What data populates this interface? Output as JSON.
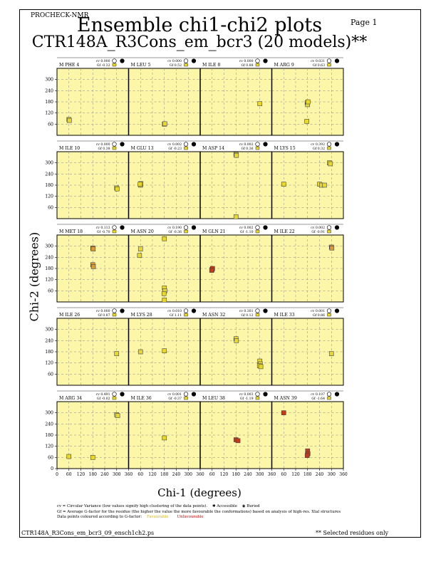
{
  "header": {
    "program": "PROCHECK-NMR",
    "page_label": "Page 1",
    "title": "Ensemble chi1-chi2 plots",
    "subtitle": "CTR148A_R3Cons_em_bcr3 (20 models)**"
  },
  "footer": {
    "filename": "CTR148A_R3Cons_em_bcr3_09_ensch1ch2.ps",
    "note": "** Selected residues only"
  },
  "legend": {
    "cv_text": "cv = Circular Variance (low values signify high clustering of the data points).",
    "accessible": "Accessible",
    "buried": "Buried",
    "gf_text": "Gf = Average G-factor for the residue (the higher the value the more favourable the conformations) based on analysis of high-res. Xtal structures",
    "colour_text": "Data points coloured according to G-factor:",
    "favourable": "Favourable",
    "unfavourable": "Unfavourable"
  },
  "colors": {
    "panel_bg": "#fbf6a8",
    "favourable": "#e8d82e",
    "intermediate": "#d89a38",
    "unfavourable": "#c23a1a"
  },
  "chart_data": {
    "type": "scatter",
    "xlabel": "Chi-1 (degrees)",
    "ylabel": "Chi-2 (degrees)",
    "xlim": [
      0,
      360
    ],
    "ylim": [
      0,
      360
    ],
    "x_ticks": [
      0,
      60,
      120,
      180,
      240,
      300,
      360
    ],
    "y_ticks": [
      60,
      120,
      180,
      240,
      300
    ],
    "y_ticks_bottom": [
      0,
      60,
      120,
      180,
      240,
      300
    ],
    "panels": [
      {
        "residue": "M PHE 4",
        "cv": "cv 0.000",
        "gf": "Gf -0.32",
        "access": "buried-acc",
        "points": [
          [
            60,
            85
          ],
          [
            62,
            80
          ]
        ]
      },
      {
        "residue": "M LEU 5",
        "cv": "cv 0.000",
        "gf": "Gf 0.52",
        "access": "buried",
        "points": [
          [
            180,
            60
          ],
          [
            182,
            62
          ]
        ]
      },
      {
        "residue": "M ILE 8",
        "cv": "cv 0.000",
        "gf": "Gf 0.88",
        "access": "accessible",
        "points": [
          [
            300,
            170
          ]
        ]
      },
      {
        "residue": "M ARG 9",
        "cv": "cv 0.031",
        "gf": "Gf 0.63",
        "access": "buried",
        "points": [
          [
            178,
            175
          ],
          [
            180,
            165
          ],
          [
            182,
            180
          ],
          [
            176,
            75
          ]
        ]
      },
      {
        "residue": "M ILE 10",
        "cv": "cv 0.000",
        "gf": "Gf 0.38",
        "access": "buried",
        "points": [
          [
            300,
            165
          ],
          [
            302,
            160
          ]
        ]
      },
      {
        "residue": "M GLU 13",
        "cv": "cv 0.002",
        "gf": "Gf -0.23",
        "access": "buried",
        "points": [
          [
            60,
            180
          ],
          [
            62,
            188
          ],
          [
            58,
            185
          ]
        ]
      },
      {
        "residue": "M ASP 14",
        "cv": "cv 0.002",
        "gf": "Gf 0.36",
        "access": "acc-buried",
        "points": [
          [
            180,
            345
          ],
          [
            182,
            340
          ],
          [
            180,
            10
          ]
        ]
      },
      {
        "residue": "M LYS 15",
        "cv": "cv 0.392",
        "gf": "Gf 0.32",
        "access": "half",
        "points": [
          [
            60,
            185
          ],
          [
            240,
            185
          ],
          [
            250,
            180
          ],
          [
            265,
            180
          ],
          [
            290,
            300
          ],
          [
            295,
            295
          ]
        ]
      },
      {
        "residue": "M MET 18",
        "cv": "cv 0.113",
        "gf": "Gf -0.70",
        "access": "buried",
        "points": [
          [
            180,
            290
          ],
          [
            182,
            285
          ],
          [
            180,
            200
          ],
          [
            183,
            190
          ]
        ]
      },
      {
        "residue": "M ASN 20",
        "cv": "cv 0.190",
        "gf": "Gf -0.36",
        "access": "buried-acc",
        "points": [
          [
            60,
            285
          ],
          [
            55,
            250
          ],
          [
            180,
            340
          ],
          [
            180,
            75
          ],
          [
            182,
            60
          ],
          [
            178,
            45
          ],
          [
            180,
            10
          ]
        ]
      },
      {
        "residue": "M GLN 21",
        "cv": "cv 0.002",
        "gf": "Gf -1.10",
        "access": "buried",
        "points": [
          [
            60,
            175
          ],
          [
            62,
            180
          ],
          [
            58,
            170
          ]
        ]
      },
      {
        "residue": "M ILE 22",
        "cv": "cv 0.002",
        "gf": "Gf -0.91",
        "access": "buried",
        "points": [
          [
            300,
            295
          ],
          [
            302,
            290
          ]
        ]
      },
      {
        "residue": "M ILE 26",
        "cv": "cv 0.000",
        "gf": "Gf 0.87",
        "access": "buried",
        "points": [
          [
            300,
            170
          ]
        ]
      },
      {
        "residue": "M LYS 28",
        "cv": "cv 0.010",
        "gf": "Gf 1.11",
        "access": "accessible",
        "points": [
          [
            60,
            180
          ],
          [
            180,
            185
          ]
        ]
      },
      {
        "residue": "M ASN 32",
        "cv": "cv 0.301",
        "gf": "Gf 0.12",
        "access": "half",
        "points": [
          [
            180,
            250
          ],
          [
            182,
            240
          ],
          [
            300,
            130
          ],
          [
            302,
            115
          ],
          [
            298,
            105
          ],
          [
            305,
            100
          ]
        ]
      },
      {
        "residue": "M ILE 33",
        "cv": "cv 0.001",
        "gf": "Gf 0.86",
        "access": "buried",
        "points": [
          [
            300,
            170
          ]
        ]
      },
      {
        "residue": "M ARG 34",
        "cv": "cv 0.491",
        "gf": "Gf -0.02",
        "access": "half-buried",
        "points": [
          [
            60,
            65
          ],
          [
            180,
            60
          ],
          [
            300,
            290
          ],
          [
            305,
            285
          ]
        ]
      },
      {
        "residue": "M ILE 36",
        "cv": "cv 0.001",
        "gf": "Gf -0.37",
        "access": "buried",
        "points": [
          [
            180,
            165
          ]
        ]
      },
      {
        "residue": "M LEU 38",
        "cv": "cv 0.003",
        "gf": "Gf -1.19",
        "access": "buried",
        "points": [
          [
            180,
            155
          ],
          [
            190,
            150
          ]
        ]
      },
      {
        "residue": "M ASN 39",
        "cv": "cv 0.107",
        "gf": "Gf -1.64",
        "access": "buried",
        "points": [
          [
            60,
            300
          ],
          [
            180,
            95
          ],
          [
            182,
            80
          ],
          [
            178,
            70
          ]
        ]
      }
    ],
    "grid": true
  }
}
